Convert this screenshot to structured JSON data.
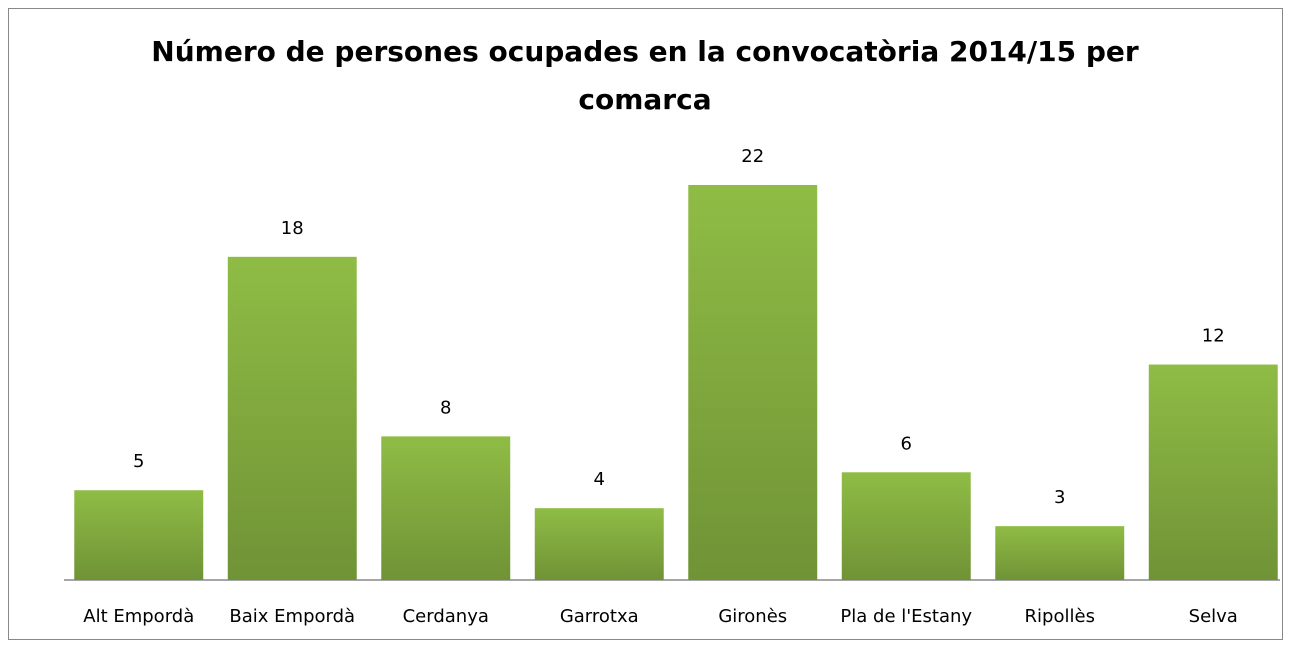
{
  "chart_data": {
    "type": "bar",
    "title": "Número de persones ocupades en la convocatòria 2014/15 per comarca",
    "categories": [
      "Alt Empordà",
      "Baix Empordà",
      "Cerdanya",
      "Garrotxa",
      "Gironès",
      "Pla de l'Estany",
      "Ripollès",
      "Selva"
    ],
    "values": [
      5,
      18,
      8,
      4,
      22,
      6,
      3,
      12
    ],
    "color": "#8fbc45"
  }
}
